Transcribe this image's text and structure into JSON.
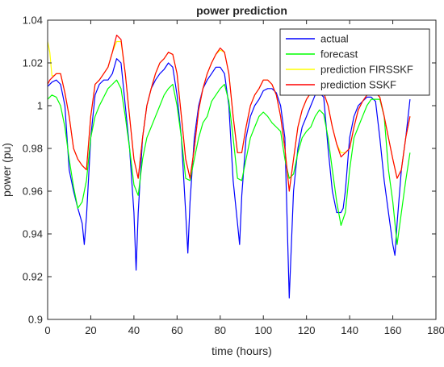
{
  "chart_data": {
    "type": "line",
    "title": "power prediction",
    "xlabel": "time (hours)",
    "ylabel": "power (pu)",
    "xlim": [
      0,
      180
    ],
    "ylim": [
      0.9,
      1.04
    ],
    "xticks": [
      0,
      20,
      40,
      60,
      80,
      100,
      120,
      140,
      160,
      180
    ],
    "xtick_labels": [
      "0",
      "20",
      "40",
      "60",
      "80",
      "100",
      "120",
      "140",
      "160",
      "180"
    ],
    "yticks": [
      0.9,
      0.92,
      0.94,
      0.96,
      0.98,
      1.0,
      1.02,
      1.04
    ],
    "ytick_labels": [
      "0.9",
      "0.92",
      "0.94",
      "0.96",
      "0.98",
      "1",
      "1.02",
      "1.04"
    ],
    "grid": false,
    "legend_position": "top-right",
    "series": [
      {
        "name": "actual",
        "color": "#0000ff",
        "x": [
          0,
          2,
          4,
          6,
          8,
          10,
          12,
          14,
          16,
          17,
          18,
          20,
          22,
          24,
          26,
          28,
          30,
          32,
          34,
          36,
          38,
          40,
          41,
          42,
          44,
          46,
          48,
          50,
          52,
          54,
          56,
          58,
          60,
          62,
          64,
          65,
          66,
          68,
          70,
          72,
          74,
          76,
          78,
          80,
          82,
          84,
          86,
          88,
          89,
          90,
          92,
          94,
          96,
          98,
          100,
          102,
          104,
          106,
          108,
          110,
          112,
          114,
          116,
          118,
          120,
          122,
          124,
          126,
          128,
          130,
          132,
          134,
          136,
          137,
          138,
          140,
          142,
          144,
          146,
          148,
          150,
          152,
          154,
          156,
          158,
          160,
          161,
          162,
          164,
          166,
          168
        ],
        "y": [
          1.009,
          1.011,
          1.012,
          1.01,
          1.0,
          0.97,
          0.96,
          0.952,
          0.945,
          0.935,
          0.948,
          0.985,
          1.005,
          1.01,
          1.012,
          1.012,
          1.015,
          1.022,
          1.02,
          1.0,
          0.98,
          0.95,
          0.923,
          0.95,
          0.985,
          1.0,
          1.008,
          1.012,
          1.015,
          1.017,
          1.02,
          1.018,
          1.005,
          0.985,
          0.95,
          0.931,
          0.955,
          0.985,
          1.0,
          1.008,
          1.012,
          1.015,
          1.018,
          1.018,
          1.015,
          1.0,
          0.965,
          0.945,
          0.935,
          0.958,
          0.985,
          0.995,
          1.0,
          1.003,
          1.007,
          1.008,
          1.008,
          1.006,
          1.0,
          0.985,
          0.91,
          0.96,
          0.98,
          0.99,
          0.995,
          1.0,
          1.005,
          1.006,
          1.004,
          0.98,
          0.96,
          0.95,
          0.95,
          0.952,
          0.96,
          0.985,
          0.995,
          1.0,
          1.002,
          1.004,
          1.004,
          1.002,
          0.985,
          0.965,
          0.95,
          0.935,
          0.93,
          0.945,
          0.97,
          0.985,
          1.003
        ]
      },
      {
        "name": "forecast",
        "color": "#00ff00",
        "x": [
          0,
          2,
          4,
          6,
          8,
          10,
          12,
          14,
          16,
          18,
          20,
          22,
          24,
          26,
          28,
          30,
          32,
          34,
          36,
          38,
          40,
          42,
          44,
          46,
          48,
          50,
          52,
          54,
          56,
          58,
          60,
          62,
          64,
          66,
          68,
          70,
          72,
          74,
          76,
          78,
          80,
          82,
          84,
          86,
          88,
          90,
          92,
          94,
          96,
          98,
          100,
          102,
          104,
          106,
          108,
          110,
          112,
          114,
          116,
          118,
          120,
          122,
          124,
          126,
          128,
          130,
          132,
          134,
          136,
          138,
          140,
          142,
          144,
          146,
          148,
          150,
          152,
          154,
          156,
          158,
          160,
          162,
          164,
          166,
          168
        ],
        "y": [
          1.003,
          1.005,
          1.004,
          1.0,
          0.99,
          0.975,
          0.962,
          0.952,
          0.955,
          0.965,
          0.985,
          0.995,
          1.0,
          1.004,
          1.008,
          1.01,
          1.012,
          1.008,
          0.995,
          0.98,
          0.963,
          0.958,
          0.975,
          0.985,
          0.99,
          0.995,
          1.0,
          1.005,
          1.008,
          1.01,
          1.0,
          0.985,
          0.966,
          0.965,
          0.975,
          0.985,
          0.992,
          0.995,
          1.002,
          1.005,
          1.008,
          1.01,
          1.002,
          0.985,
          0.966,
          0.965,
          0.975,
          0.985,
          0.99,
          0.995,
          0.997,
          0.995,
          0.992,
          0.99,
          0.988,
          0.975,
          0.966,
          0.968,
          0.978,
          0.985,
          0.988,
          0.99,
          0.995,
          0.998,
          0.996,
          0.985,
          0.97,
          0.955,
          0.944,
          0.95,
          0.97,
          0.985,
          0.99,
          0.995,
          1.0,
          1.003,
          1.003,
          1.003,
          0.995,
          0.97,
          0.955,
          0.935,
          0.95,
          0.965,
          0.978
        ]
      },
      {
        "name": "prediction FIRSSKF",
        "color": "#ffff00",
        "x": [
          0,
          1,
          2,
          3,
          4,
          6,
          8,
          10,
          12,
          14,
          16,
          18,
          20,
          22,
          24,
          26,
          28,
          30,
          32,
          34,
          36,
          38,
          40,
          42,
          44,
          46,
          48,
          50,
          52,
          54,
          56,
          58,
          60,
          62,
          64,
          66,
          68,
          70,
          72,
          74,
          76,
          78,
          80,
          82,
          84,
          86,
          88,
          90,
          92,
          94,
          96,
          98,
          100,
          102,
          104,
          106,
          108,
          110,
          112,
          114,
          116,
          118,
          120,
          122,
          124,
          126,
          128,
          130,
          132,
          134,
          136,
          138,
          140,
          142,
          144,
          146,
          148,
          150,
          152,
          154,
          156,
          158,
          160,
          162,
          164,
          166,
          168
        ],
        "y": [
          1.03,
          1.025,
          1.014,
          1.014,
          1.015,
          1.015,
          1.006,
          0.995,
          0.98,
          0.975,
          0.972,
          0.97,
          0.995,
          1.01,
          1.012,
          1.015,
          1.018,
          1.025,
          1.03,
          1.03,
          1.015,
          0.995,
          0.975,
          0.966,
          0.985,
          1.0,
          1.008,
          1.015,
          1.02,
          1.022,
          1.025,
          1.024,
          1.015,
          0.995,
          0.975,
          0.966,
          0.98,
          0.998,
          1.008,
          1.015,
          1.02,
          1.024,
          1.026,
          1.025,
          1.015,
          0.995,
          0.978,
          0.978,
          0.99,
          1.0,
          1.005,
          1.008,
          1.012,
          1.012,
          1.01,
          1.005,
          0.995,
          0.98,
          0.96,
          0.975,
          0.99,
          0.998,
          1.003,
          1.006,
          1.008,
          1.008,
          1.006,
          1.0,
          0.99,
          0.982,
          0.978,
          0.978,
          0.98,
          0.99,
          0.998,
          1.002,
          1.005,
          1.006,
          1.006,
          1.004,
          0.995,
          0.985,
          0.975,
          0.966,
          0.97,
          0.985,
          0.995
        ]
      },
      {
        "name": "prediction SSKF",
        "color": "#ff0000",
        "x": [
          0,
          1,
          2,
          3,
          4,
          6,
          8,
          10,
          12,
          14,
          16,
          18,
          20,
          22,
          24,
          26,
          28,
          30,
          32,
          34,
          36,
          38,
          40,
          42,
          44,
          46,
          48,
          50,
          52,
          54,
          56,
          58,
          60,
          62,
          64,
          66,
          68,
          70,
          72,
          74,
          76,
          78,
          80,
          82,
          84,
          86,
          88,
          90,
          92,
          94,
          96,
          98,
          100,
          102,
          104,
          106,
          108,
          110,
          112,
          114,
          116,
          118,
          120,
          122,
          124,
          126,
          128,
          130,
          132,
          134,
          136,
          138,
          140,
          142,
          144,
          146,
          148,
          150,
          152,
          154,
          156,
          158,
          160,
          162,
          164,
          166,
          168
        ],
        "y": [
          1.01,
          1.012,
          1.013,
          1.014,
          1.015,
          1.015,
          1.006,
          0.995,
          0.98,
          0.975,
          0.972,
          0.97,
          0.995,
          1.01,
          1.012,
          1.015,
          1.018,
          1.025,
          1.033,
          1.031,
          1.015,
          0.995,
          0.975,
          0.966,
          0.985,
          1.0,
          1.008,
          1.015,
          1.02,
          1.022,
          1.025,
          1.024,
          1.015,
          0.995,
          0.975,
          0.966,
          0.98,
          0.998,
          1.008,
          1.015,
          1.02,
          1.024,
          1.027,
          1.025,
          1.015,
          0.995,
          0.978,
          0.978,
          0.99,
          1.0,
          1.005,
          1.008,
          1.012,
          1.012,
          1.01,
          1.005,
          0.995,
          0.98,
          0.96,
          0.975,
          0.99,
          0.998,
          1.003,
          1.006,
          1.008,
          1.008,
          1.006,
          1.0,
          0.99,
          0.982,
          0.976,
          0.978,
          0.98,
          0.99,
          0.998,
          1.002,
          1.005,
          1.006,
          1.006,
          1.004,
          0.995,
          0.985,
          0.975,
          0.966,
          0.97,
          0.985,
          0.995
        ]
      }
    ]
  }
}
